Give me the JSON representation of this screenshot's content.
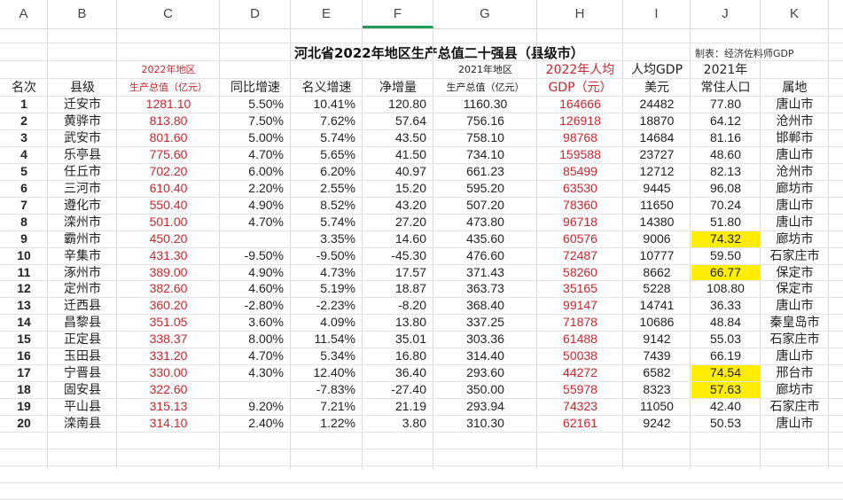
{
  "columns": [
    "A",
    "B",
    "C",
    "D",
    "E",
    "F",
    "G",
    "H",
    "I",
    "J",
    "K"
  ],
  "selected_column": "F",
  "sheet": {
    "title": "河北省2022年地区生产总值二十强县（县级市）",
    "credit": "制表：经济佐料师GDP",
    "headers": {
      "rank": "名次",
      "county": "县级",
      "gdp2022_line1": "2022年地区",
      "gdp2022_line2": "生产总值（亿元）",
      "real_growth": "同比增速",
      "nominal_growth": "名义增速",
      "net_increase": "净增量",
      "gdp2021_line1": "2021年地区",
      "gdp2021_line2": "生产总值（亿元）",
      "per_capita_line1": "2022年人均",
      "per_capita_line2": "GDP（元）",
      "usd_line1": "人均GDP",
      "usd_line2": "美元",
      "pop_line1": "2021年",
      "pop_line2": "常住人口",
      "city": "属地"
    },
    "colors": {
      "red_text": "#c8282f",
      "highlight": "#ffee00",
      "selected_col": "#1f9d55"
    },
    "rows": [
      {
        "rank": "1",
        "county": "迁安市",
        "gdp2022": "1281.10",
        "real": "5.50%",
        "nominal": "10.41%",
        "net": "120.80",
        "gdp2021": "1160.30",
        "pc": "164666",
        "usd": "24482",
        "pop": "77.80",
        "city": "唐山市",
        "hl": false
      },
      {
        "rank": "2",
        "county": "黄骅市",
        "gdp2022": "813.80",
        "real": "7.50%",
        "nominal": "7.62%",
        "net": "57.64",
        "gdp2021": "756.16",
        "pc": "126918",
        "usd": "18870",
        "pop": "64.12",
        "city": "沧州市",
        "hl": false
      },
      {
        "rank": "3",
        "county": "武安市",
        "gdp2022": "801.60",
        "real": "5.00%",
        "nominal": "5.74%",
        "net": "43.50",
        "gdp2021": "758.10",
        "pc": "98768",
        "usd": "14684",
        "pop": "81.16",
        "city": "邯郸市",
        "hl": false
      },
      {
        "rank": "4",
        "county": "乐亭县",
        "gdp2022": "775.60",
        "real": "4.70%",
        "nominal": "5.65%",
        "net": "41.50",
        "gdp2021": "734.10",
        "pc": "159588",
        "usd": "23727",
        "pop": "48.60",
        "city": "唐山市",
        "hl": false
      },
      {
        "rank": "5",
        "county": "任丘市",
        "gdp2022": "702.20",
        "real": "6.00%",
        "nominal": "6.20%",
        "net": "40.97",
        "gdp2021": "661.23",
        "pc": "85499",
        "usd": "12712",
        "pop": "82.13",
        "city": "沧州市",
        "hl": false
      },
      {
        "rank": "6",
        "county": "三河市",
        "gdp2022": "610.40",
        "real": "2.20%",
        "nominal": "2.55%",
        "net": "15.20",
        "gdp2021": "595.20",
        "pc": "63530",
        "usd": "9445",
        "pop": "96.08",
        "city": "廊坊市",
        "hl": false
      },
      {
        "rank": "7",
        "county": "遵化市",
        "gdp2022": "550.40",
        "real": "4.90%",
        "nominal": "8.52%",
        "net": "43.20",
        "gdp2021": "507.20",
        "pc": "78360",
        "usd": "11650",
        "pop": "70.24",
        "city": "唐山市",
        "hl": false
      },
      {
        "rank": "8",
        "county": "滦州市",
        "gdp2022": "501.00",
        "real": "4.70%",
        "nominal": "5.74%",
        "net": "27.20",
        "gdp2021": "473.80",
        "pc": "96718",
        "usd": "14380",
        "pop": "51.80",
        "city": "唐山市",
        "hl": false
      },
      {
        "rank": "9",
        "county": "霸州市",
        "gdp2022": "450.20",
        "real": "",
        "nominal": "3.35%",
        "net": "14.60",
        "gdp2021": "435.60",
        "pc": "60576",
        "usd": "9006",
        "pop": "74.32",
        "city": "廊坊市",
        "hl": true
      },
      {
        "rank": "10",
        "county": "辛集市",
        "gdp2022": "431.30",
        "real": "-9.50%",
        "nominal": "-9.50%",
        "net": "-45.30",
        "gdp2021": "476.60",
        "pc": "72487",
        "usd": "10777",
        "pop": "59.50",
        "city": "石家庄市",
        "hl": false
      },
      {
        "rank": "11",
        "county": "涿州市",
        "gdp2022": "389.00",
        "real": "4.90%",
        "nominal": "4.73%",
        "net": "17.57",
        "gdp2021": "371.43",
        "pc": "58260",
        "usd": "8662",
        "pop": "66.77",
        "city": "保定市",
        "hl": true
      },
      {
        "rank": "12",
        "county": "定州市",
        "gdp2022": "382.60",
        "real": "4.60%",
        "nominal": "5.19%",
        "net": "18.87",
        "gdp2021": "363.73",
        "pc": "35165",
        "usd": "5228",
        "pop": "108.80",
        "city": "保定市",
        "hl": false
      },
      {
        "rank": "13",
        "county": "迁西县",
        "gdp2022": "360.20",
        "real": "-2.80%",
        "nominal": "-2.23%",
        "net": "-8.20",
        "gdp2021": "368.40",
        "pc": "99147",
        "usd": "14741",
        "pop": "36.33",
        "city": "唐山市",
        "hl": false
      },
      {
        "rank": "14",
        "county": "昌黎县",
        "gdp2022": "351.05",
        "real": "3.60%",
        "nominal": "4.09%",
        "net": "13.80",
        "gdp2021": "337.25",
        "pc": "71878",
        "usd": "10686",
        "pop": "48.84",
        "city": "秦皇岛市",
        "hl": false
      },
      {
        "rank": "15",
        "county": "正定县",
        "gdp2022": "338.37",
        "real": "8.00%",
        "nominal": "11.54%",
        "net": "35.01",
        "gdp2021": "303.36",
        "pc": "61488",
        "usd": "9142",
        "pop": "55.03",
        "city": "石家庄市",
        "hl": false
      },
      {
        "rank": "16",
        "county": "玉田县",
        "gdp2022": "331.20",
        "real": "4.70%",
        "nominal": "5.34%",
        "net": "16.80",
        "gdp2021": "314.40",
        "pc": "50038",
        "usd": "7439",
        "pop": "66.19",
        "city": "唐山市",
        "hl": false
      },
      {
        "rank": "17",
        "county": "宁晋县",
        "gdp2022": "330.00",
        "real": "4.30%",
        "nominal": "12.40%",
        "net": "36.40",
        "gdp2021": "293.60",
        "pc": "44272",
        "usd": "6582",
        "pop": "74.54",
        "city": "邢台市",
        "hl": true
      },
      {
        "rank": "18",
        "county": "固安县",
        "gdp2022": "322.60",
        "real": "",
        "nominal": "-7.83%",
        "net": "-27.40",
        "gdp2021": "350.00",
        "pc": "55978",
        "usd": "8323",
        "pop": "57.63",
        "city": "廊坊市",
        "hl": true
      },
      {
        "rank": "19",
        "county": "平山县",
        "gdp2022": "315.13",
        "real": "9.20%",
        "nominal": "7.21%",
        "net": "21.19",
        "gdp2021": "293.94",
        "pc": "74323",
        "usd": "11050",
        "pop": "42.40",
        "city": "石家庄市",
        "hl": false
      },
      {
        "rank": "20",
        "county": "滦南县",
        "gdp2022": "314.10",
        "real": "2.40%",
        "nominal": "1.22%",
        "net": "3.80",
        "gdp2021": "310.30",
        "pc": "62161",
        "usd": "9242",
        "pop": "50.53",
        "city": "唐山市",
        "hl": false
      }
    ]
  }
}
